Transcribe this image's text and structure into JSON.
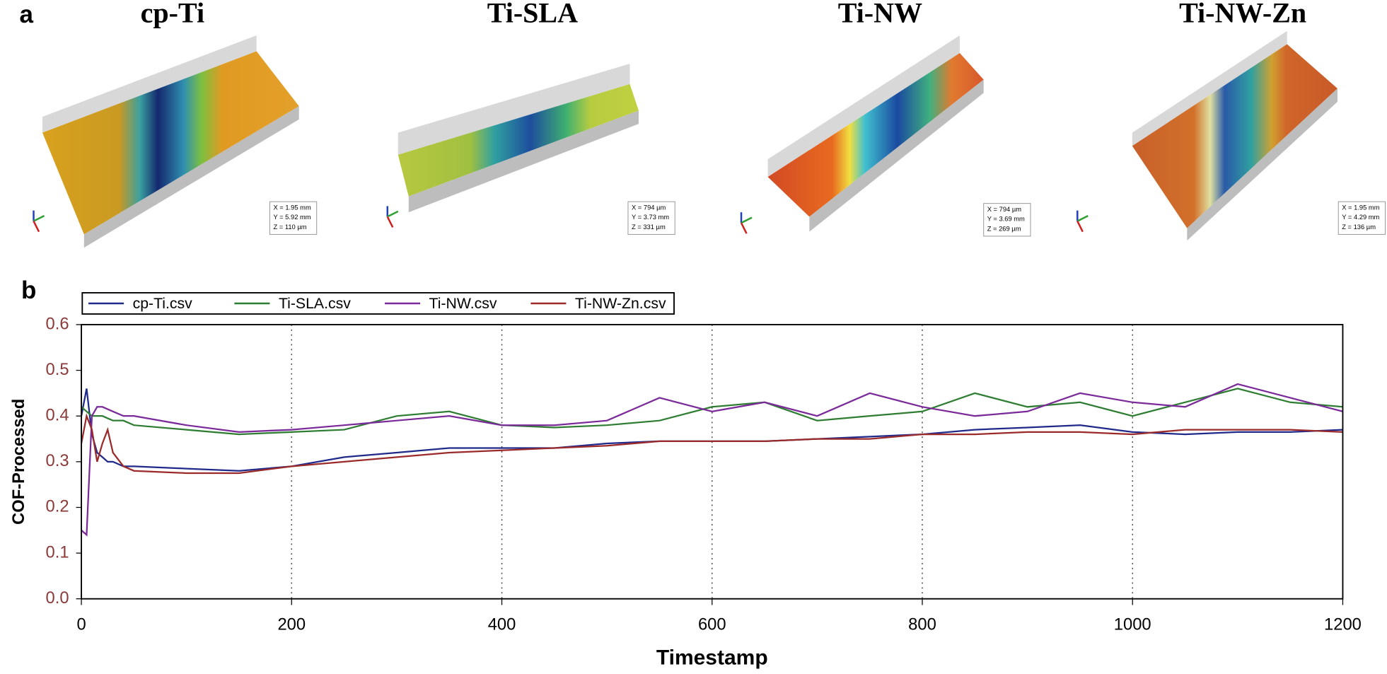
{
  "panel_a": {
    "label": "a",
    "samples": [
      {
        "title": "cp-Ti",
        "info": [
          "X = 1.95 mm",
          "Y = 5.92 mm",
          "Z = 110 µm"
        ]
      },
      {
        "title": "Ti-SLA",
        "info": [
          "X = 794 µm",
          "Y = 3.73 mm",
          "Z = 331 µm"
        ]
      },
      {
        "title": "Ti-NW",
        "info": [
          "X = 794 µm",
          "Y = 3.69 mm",
          "Z = 269 µm"
        ]
      },
      {
        "title": "Ti-NW-Zn",
        "info": [
          "X = 1.95 mm",
          "Y = 4.29 mm",
          "Z = 136 µm"
        ]
      }
    ]
  },
  "chart_data": {
    "type": "line",
    "panel_label": "b",
    "x_label": "Timestamp",
    "y_label": "COF-Processed",
    "x": [
      0,
      5,
      10,
      15,
      20,
      25,
      30,
      40,
      50,
      100,
      150,
      200,
      250,
      300,
      350,
      400,
      450,
      500,
      550,
      600,
      650,
      700,
      750,
      800,
      850,
      900,
      950,
      1000,
      1050,
      1100,
      1150,
      1200
    ],
    "series": [
      {
        "name": "cp-Ti.csv",
        "color": "#1f2a8a",
        "values": [
          0.4,
          0.46,
          0.36,
          0.32,
          0.31,
          0.3,
          0.3,
          0.29,
          0.29,
          0.285,
          0.28,
          0.29,
          0.31,
          0.32,
          0.33,
          0.33,
          0.33,
          0.34,
          0.345,
          0.345,
          0.345,
          0.35,
          0.355,
          0.36,
          0.37,
          0.375,
          0.38,
          0.365,
          0.36,
          0.365,
          0.365,
          0.37
        ]
      },
      {
        "name": "Ti-SLA.csv",
        "color": "#2e7d32",
        "values": [
          0.42,
          0.41,
          0.4,
          0.4,
          0.4,
          0.395,
          0.39,
          0.39,
          0.38,
          0.37,
          0.36,
          0.365,
          0.37,
          0.4,
          0.41,
          0.38,
          0.375,
          0.38,
          0.39,
          0.42,
          0.43,
          0.39,
          0.4,
          0.41,
          0.45,
          0.42,
          0.43,
          0.4,
          0.43,
          0.46,
          0.43,
          0.42
        ]
      },
      {
        "name": "Ti-NW.csv",
        "color": "#7b2a9a",
        "values": [
          0.15,
          0.14,
          0.4,
          0.42,
          0.42,
          0.415,
          0.41,
          0.4,
          0.4,
          0.38,
          0.365,
          0.37,
          0.38,
          0.39,
          0.4,
          0.38,
          0.38,
          0.39,
          0.44,
          0.41,
          0.43,
          0.4,
          0.45,
          0.42,
          0.4,
          0.41,
          0.45,
          0.43,
          0.42,
          0.47,
          0.44,
          0.41
        ]
      },
      {
        "name": "Ti-NW-Zn.csv",
        "color": "#9b2a2a",
        "values": [
          0.34,
          0.4,
          0.37,
          0.3,
          0.34,
          0.37,
          0.32,
          0.29,
          0.28,
          0.275,
          0.275,
          0.29,
          0.3,
          0.31,
          0.32,
          0.325,
          0.33,
          0.335,
          0.345,
          0.345,
          0.345,
          0.35,
          0.35,
          0.36,
          0.36,
          0.365,
          0.365,
          0.36,
          0.37,
          0.37,
          0.37,
          0.365
        ]
      }
    ],
    "xlim": [
      0,
      1200
    ],
    "xticks": [
      0,
      200,
      400,
      600,
      800,
      1000,
      1200
    ],
    "ylim": [
      0,
      0.6
    ],
    "yticks": [
      {
        "value": 0,
        "label": "0.0"
      },
      0.1,
      0.2,
      0.3,
      0.4,
      0.5,
      0.6
    ],
    "grid": "x"
  }
}
